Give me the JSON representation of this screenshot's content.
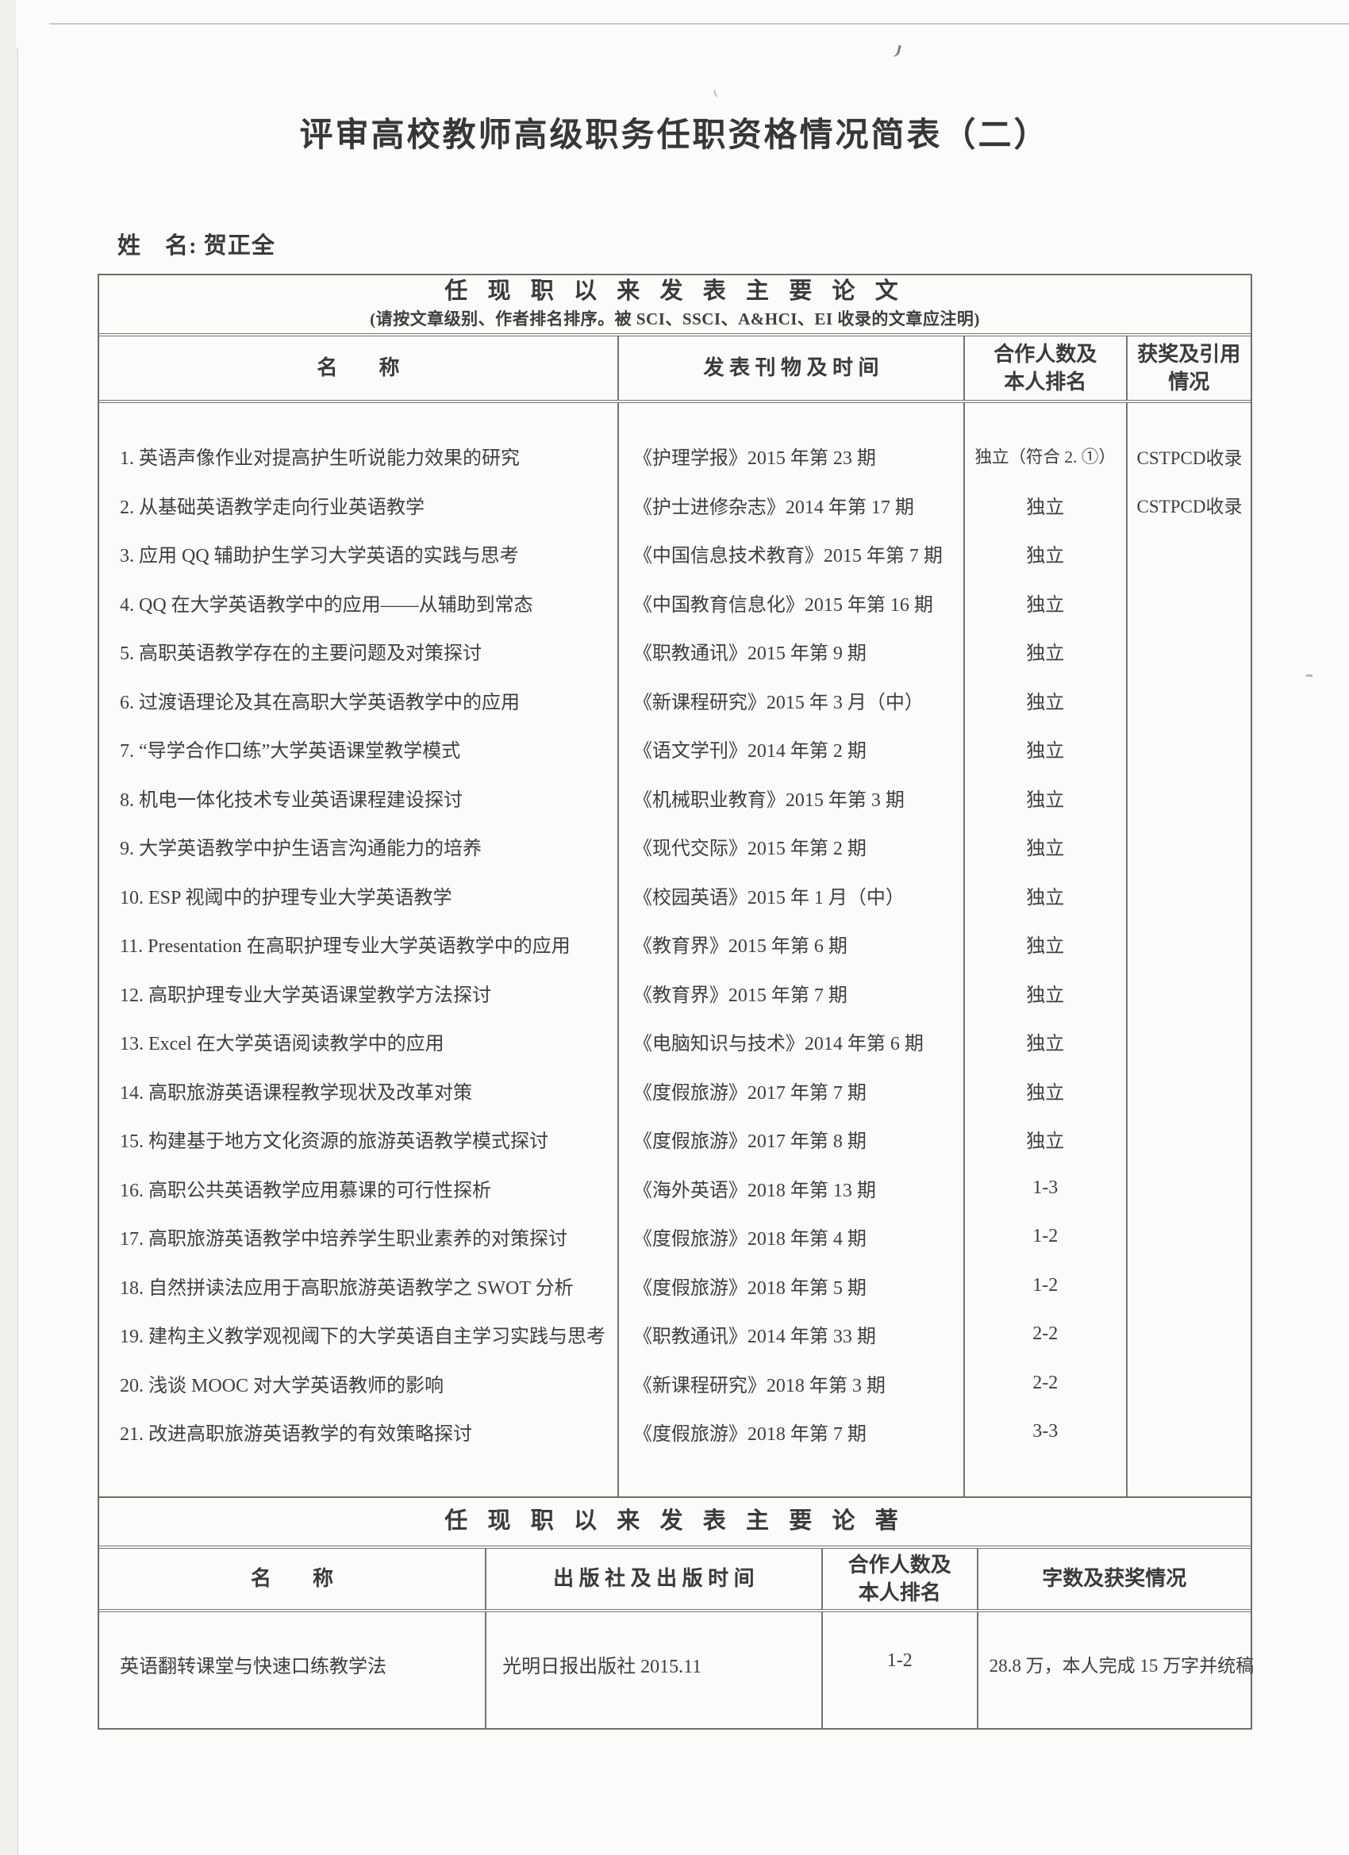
{
  "page": {
    "title": "评审高校教师高级职务任职资格情况简表（二）",
    "name_line": "姓　名: 贺正全"
  },
  "papers_table": {
    "section_title": "任 现 职 以 来 发 表 主 要 论 文",
    "section_note": "(请按文章级别、作者排名排序。被 SCI、SSCI、A&HCI、EI 收录的文章应注明)",
    "headers": {
      "name": "名　　称",
      "journal": "发 表 刊 物 及 时 间",
      "rank_l1": "合作人数及",
      "rank_l2": "本人排名",
      "award_l1": "获奖及引用",
      "award_l2": "情况"
    },
    "rows": [
      {
        "title": "1. 英语声像作业对提高护生听说能力效果的研究",
        "journal": "《护理学报》2015 年第 23 期",
        "rank": "独立（符合 2. ①）",
        "award": "CSTPCD收录"
      },
      {
        "title": "2. 从基础英语教学走向行业英语教学",
        "journal": "《护士进修杂志》2014 年第 17 期",
        "rank": "独立",
        "award": "CSTPCD收录"
      },
      {
        "title": "3. 应用 QQ 辅助护生学习大学英语的实践与思考",
        "journal": "《中国信息技术教育》2015 年第 7 期",
        "rank": "独立",
        "award": ""
      },
      {
        "title": "4. QQ 在大学英语教学中的应用——从辅助到常态",
        "journal": "《中国教育信息化》2015 年第 16 期",
        "rank": "独立",
        "award": ""
      },
      {
        "title": "5. 高职英语教学存在的主要问题及对策探讨",
        "journal": "《职教通讯》2015 年第 9 期",
        "rank": "独立",
        "award": ""
      },
      {
        "title": "6. 过渡语理论及其在高职大学英语教学中的应用",
        "journal": "《新课程研究》2015 年 3 月（中）",
        "rank": "独立",
        "award": ""
      },
      {
        "title": "7. “导学合作口练”大学英语课堂教学模式",
        "journal": "《语文学刊》2014 年第 2 期",
        "rank": "独立",
        "award": ""
      },
      {
        "title": "8. 机电一体化技术专业英语课程建设探讨",
        "journal": "《机械职业教育》2015 年第 3 期",
        "rank": "独立",
        "award": ""
      },
      {
        "title": "9. 大学英语教学中护生语言沟通能力的培养",
        "journal": "《现代交际》2015 年第 2 期",
        "rank": "独立",
        "award": ""
      },
      {
        "title": "10. ESP 视阈中的护理专业大学英语教学",
        "journal": "《校园英语》2015 年 1 月（中）",
        "rank": "独立",
        "award": ""
      },
      {
        "title": "11. Presentation 在高职护理专业大学英语教学中的应用",
        "journal": "《教育界》2015 年第 6 期",
        "rank": "独立",
        "award": ""
      },
      {
        "title": "12. 高职护理专业大学英语课堂教学方法探讨",
        "journal": "《教育界》2015 年第 7 期",
        "rank": "独立",
        "award": ""
      },
      {
        "title": "13. Excel 在大学英语阅读教学中的应用",
        "journal": "《电脑知识与技术》2014 年第 6 期",
        "rank": "独立",
        "award": ""
      },
      {
        "title": "14. 高职旅游英语课程教学现状及改革对策",
        "journal": "《度假旅游》2017 年第 7 期",
        "rank": "独立",
        "award": ""
      },
      {
        "title": "15. 构建基于地方文化资源的旅游英语教学模式探讨",
        "journal": "《度假旅游》2017 年第 8 期",
        "rank": "独立",
        "award": ""
      },
      {
        "title": "16. 高职公共英语教学应用慕课的可行性探析",
        "journal": "《海外英语》2018 年第 13 期",
        "rank": "1-3",
        "award": ""
      },
      {
        "title": "17. 高职旅游英语教学中培养学生职业素养的对策探讨",
        "journal": "《度假旅游》2018 年第 4 期",
        "rank": "1-2",
        "award": ""
      },
      {
        "title": "18. 自然拼读法应用于高职旅游英语教学之 SWOT 分析",
        "journal": "《度假旅游》2018 年第 5 期",
        "rank": "1-2",
        "award": ""
      },
      {
        "title": "19. 建构主义教学观视阈下的大学英语自主学习实践与思考",
        "journal": "《职教通讯》2014 年第 33 期",
        "rank": "2-2",
        "award": ""
      },
      {
        "title": "20. 浅谈 MOOC 对大学英语教师的影响",
        "journal": "《新课程研究》2018 年第 3 期",
        "rank": "2-2",
        "award": ""
      },
      {
        "title": "21. 改进高职旅游英语教学的有效策略探讨",
        "journal": "《度假旅游》2018 年第 7 期",
        "rank": "3-3",
        "award": ""
      }
    ]
  },
  "books_table": {
    "section_title": "任 现 职 以 来 发 表 主 要 论 著",
    "headers": {
      "name": "名　　称",
      "publisher": "出 版 社 及 出 版 时 间",
      "rank_l1": "合作人数及",
      "rank_l2": "本人排名",
      "words": "字数及获奖情况"
    },
    "rows": [
      {
        "title": "英语翻转课堂与快速口练教学法",
        "publisher": "光明日报出版社 2015.11",
        "rank": "1-2",
        "words": "28.8 万，本人完成 15 万字并统稿"
      }
    ]
  }
}
